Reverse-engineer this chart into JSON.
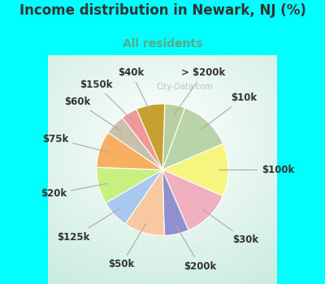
{
  "title": "Income distribution in Newark, NJ (%)",
  "subtitle": "All residents",
  "background_color": "#00FFFF",
  "title_color": "#333333",
  "subtitle_color": "#5aaa88",
  "watermark": "City-Data.com",
  "slices": [
    {
      "label": "> $200k",
      "value": 5,
      "color": "#b8cfa0"
    },
    {
      "label": "$10k",
      "value": 13,
      "color": "#b8d4a8"
    },
    {
      "label": "$100k",
      "value": 13,
      "color": "#f5f580"
    },
    {
      "label": "$30k",
      "value": 12,
      "color": "#f0b0c0"
    },
    {
      "label": "$200k",
      "value": 6,
      "color": "#9090d0"
    },
    {
      "label": "$50k",
      "value": 10,
      "color": "#f8c8a0"
    },
    {
      "label": "$125k",
      "value": 7,
      "color": "#a8c8f0"
    },
    {
      "label": "$20k",
      "value": 9,
      "color": "#c8f080"
    },
    {
      "label": "$75k",
      "value": 9,
      "color": "#f8b060"
    },
    {
      "label": "$60k",
      "value": 5,
      "color": "#c8c0a8"
    },
    {
      "label": "$150k",
      "value": 4,
      "color": "#f09898"
    },
    {
      "label": "$40k",
      "value": 7,
      "color": "#c8a030"
    }
  ],
  "title_fontsize": 12,
  "subtitle_fontsize": 10,
  "label_fontsize": 8.5
}
